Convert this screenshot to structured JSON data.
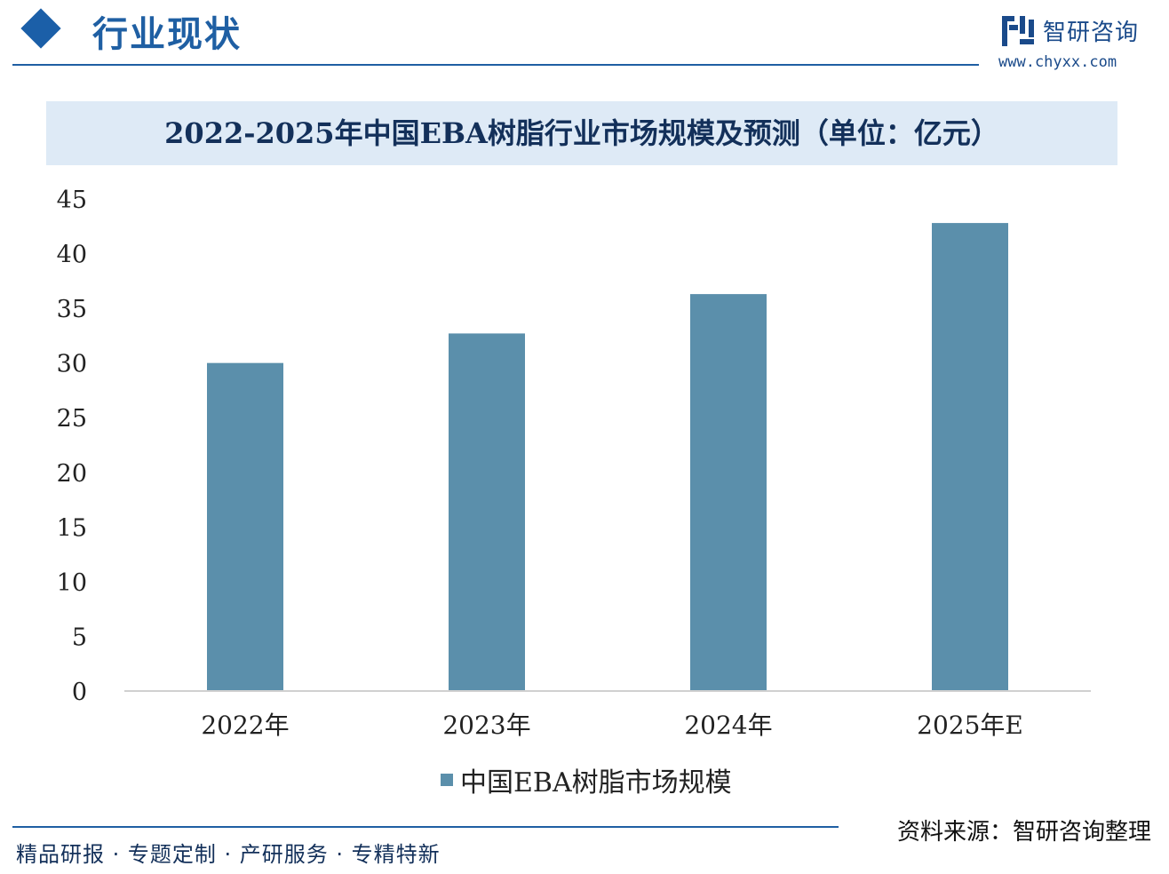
{
  "header": {
    "section_title": "行业现状",
    "brand_name": "智研咨询",
    "brand_url": "www.chyxx.com"
  },
  "chart_data": {
    "type": "bar",
    "title": "2022-2025年中国EBA树脂行业市场规模及预测（单位：亿元）",
    "categories": [
      "2022年",
      "2023年",
      "2024年",
      "2025年E"
    ],
    "series": [
      {
        "name": "中国EBA树脂市场规模",
        "values": [
          30.0,
          32.7,
          36.3,
          42.8
        ],
        "color": "#5b8fab"
      }
    ],
    "ylim": [
      0,
      45
    ],
    "yticks": [
      "0",
      "5",
      "10",
      "15",
      "20",
      "25",
      "30",
      "35",
      "40",
      "45"
    ],
    "grid": false,
    "legend_position": "bottom"
  },
  "source": "资料来源：智研咨询整理",
  "footer": "精品研报 · 专题定制 · 产研服务 · 专精特新",
  "colors": {
    "accent": "#1f5fa3",
    "bar": "#5b8fab",
    "banner": "#deeaf6"
  }
}
